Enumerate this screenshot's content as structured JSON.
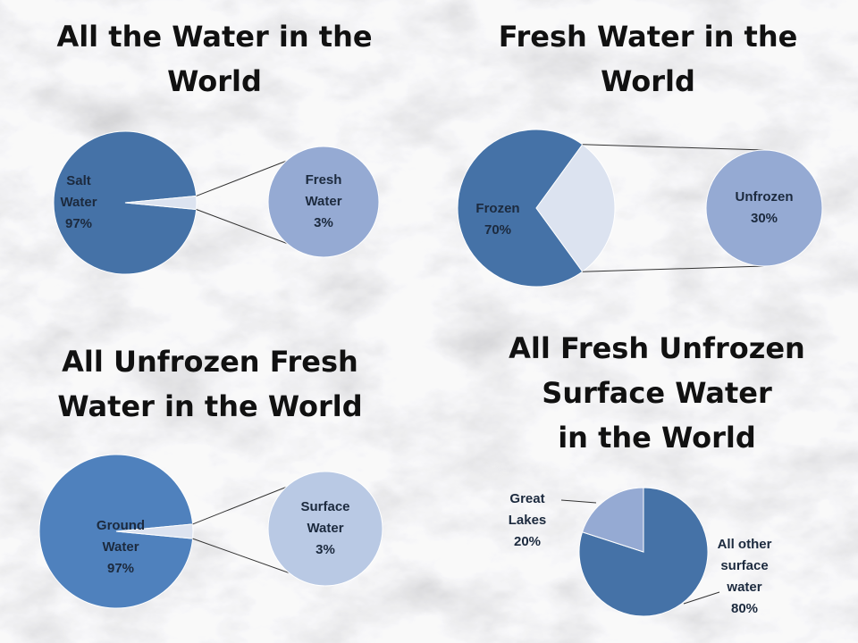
{
  "chart_data": [
    {
      "type": "pie-of-pie",
      "title": "All the Water in the\nWorld",
      "categories": [
        "Salt Water",
        "Fresh Water"
      ],
      "values": [
        97,
        3
      ],
      "value_labels": [
        "97%",
        "3%"
      ],
      "colors": [
        "#4572a7",
        "#dce3f0"
      ],
      "detail_color": "#95aad3"
    },
    {
      "type": "pie-of-pie",
      "title": "Fresh Water in the\nWorld",
      "categories": [
        "Frozen",
        "Unfrozen"
      ],
      "values": [
        70,
        30
      ],
      "value_labels": [
        "70%",
        "30%"
      ],
      "colors": [
        "#4572a7",
        "#dce3f0"
      ],
      "detail_color": "#95aad3"
    },
    {
      "type": "pie-of-pie",
      "title": "All Unfrozen Fresh\nWater in the World",
      "categories": [
        "Ground Water",
        "Surface Water"
      ],
      "values": [
        97,
        3
      ],
      "value_labels": [
        "97%",
        "3%"
      ],
      "colors": [
        "#4f81bd",
        "#dce3f0"
      ],
      "detail_color": "#b9c9e4"
    },
    {
      "type": "pie",
      "title": "All Fresh Unfrozen\nSurface Water\nin the World",
      "categories": [
        "All other surface water",
        "Great Lakes"
      ],
      "values": [
        80,
        20
      ],
      "value_labels": [
        "80%",
        "20%"
      ],
      "colors": [
        "#4572a7",
        "#95aad3"
      ]
    }
  ]
}
